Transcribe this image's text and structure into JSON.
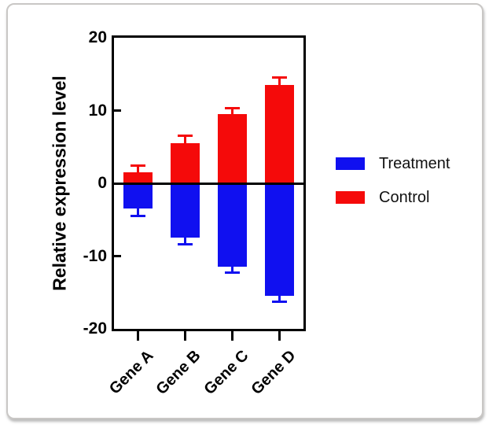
{
  "frame": {
    "background": "#ffffff",
    "border_color": "#c9c7c5"
  },
  "chart_data": {
    "type": "bar",
    "title": "",
    "xlabel": "",
    "ylabel": "Relative expression level",
    "categories": [
      "Gene A",
      "Gene B",
      "Gene C",
      "Gene D"
    ],
    "series": [
      {
        "name": "Treatment",
        "color": "#1010f0",
        "values": [
          -3.5,
          -7.5,
          -11.5,
          -15.5
        ],
        "errors": [
          1.0,
          0.9,
          0.8,
          0.8
        ]
      },
      {
        "name": "Control",
        "color": "#f50a0a",
        "values": [
          1.5,
          5.5,
          9.5,
          13.5
        ],
        "errors": [
          0.9,
          1.0,
          0.8,
          1.0
        ]
      }
    ],
    "ylim": [
      -20,
      20
    ],
    "yticks": [
      20,
      10,
      0,
      -10,
      -20
    ],
    "baseline": 0,
    "grid": false,
    "legend_position": "right",
    "error_bars": "outward, same color as bar, T-cap"
  }
}
